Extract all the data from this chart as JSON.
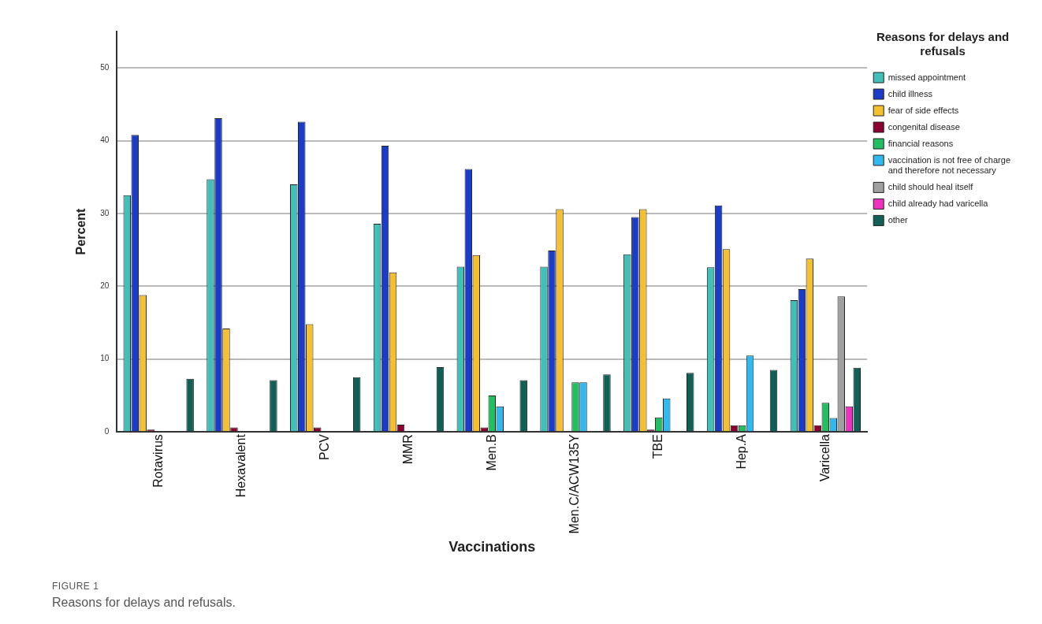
{
  "chart_data": {
    "type": "bar",
    "xlabel": "Vaccinations",
    "ylabel": "Percent",
    "legend_title": "Reasons for delays and refusals",
    "categories": [
      "Rotavirus",
      "Hexavalent",
      "PCV",
      "MMR",
      "Men.B",
      "Men.C/ACW135Y",
      "TBE",
      "Hep.A",
      "Varicella"
    ],
    "series": [
      {
        "name": "missed appointment",
        "color": "#40c0b8",
        "values": [
          32.5,
          34.7,
          34.0,
          28.6,
          22.7,
          22.7,
          24.4,
          22.6,
          18.1
        ]
      },
      {
        "name": "child illness",
        "color": "#1a3cc8",
        "values": [
          40.8,
          43.1,
          42.6,
          39.3,
          36.1,
          24.9,
          29.5,
          31.1,
          19.6
        ]
      },
      {
        "name": "fear of side effects",
        "color": "#f5c030",
        "values": [
          18.8,
          14.2,
          14.8,
          21.9,
          24.3,
          30.6,
          30.6,
          25.1,
          23.8
        ]
      },
      {
        "name": "congenital disease",
        "color": "#8b0030",
        "values": [
          0.3,
          0.6,
          0.6,
          1.0,
          0.6,
          0,
          0.3,
          0.9,
          0.9
        ]
      },
      {
        "name": "financial reasons",
        "color": "#20c060",
        "values": [
          0,
          0,
          0,
          0,
          5.0,
          6.8,
          2.0,
          0.9,
          4.0
        ]
      },
      {
        "name": "vaccination is not free of charge and therefore not necessary",
        "color": "#30b8f0",
        "values": [
          0,
          0,
          0,
          0,
          3.5,
          6.8,
          4.6,
          10.5,
          1.9
        ]
      },
      {
        "name": "child should heal itself",
        "color": "#a0a0a0",
        "values": [
          0,
          0,
          0,
          0,
          0,
          0,
          0,
          0,
          18.6
        ]
      },
      {
        "name": "child already had varicella",
        "color": "#f030c0",
        "values": [
          0,
          0,
          0,
          0,
          0,
          0,
          0,
          0,
          3.5
        ]
      },
      {
        "name": "other",
        "color": "#106058",
        "values": [
          7.3,
          7.1,
          7.5,
          8.9,
          7.1,
          7.9,
          8.1,
          8.5,
          8.8
        ]
      }
    ],
    "ylim": [
      0,
      55
    ],
    "yticks": [
      0,
      10,
      20,
      30,
      40,
      50
    ],
    "grid": "y",
    "legend": "top right",
    "annotations": [
      "FIGURE 1",
      "Reasons for delays and refusals."
    ]
  }
}
